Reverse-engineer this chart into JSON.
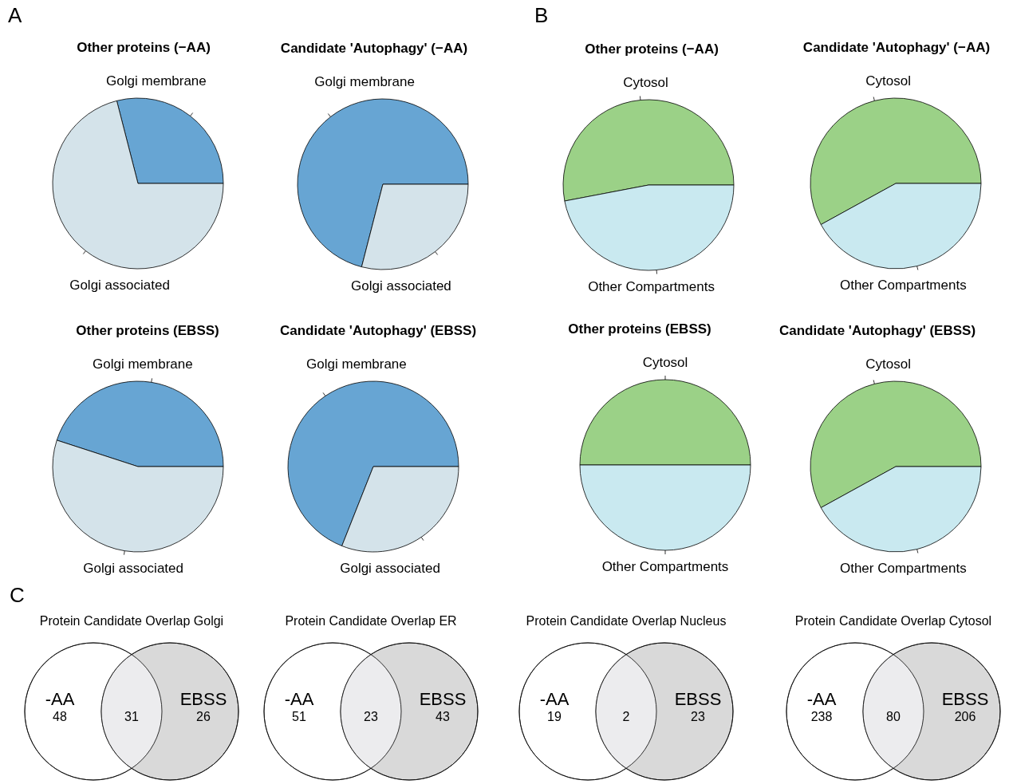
{
  "chart_data": [
    {
      "type": "pie",
      "title": "Other proteins (−AA)",
      "categories": [
        "Golgi membrane",
        "Golgi associated"
      ],
      "values": [
        29,
        71
      ],
      "colors": [
        "#67a5d3",
        "#d4e3ea"
      ],
      "annotations": [
        "A"
      ]
    },
    {
      "type": "pie",
      "title": "Candidate 'Autophagy' (−AA)",
      "categories": [
        "Golgi membrane",
        "Golgi associated"
      ],
      "values": [
        71,
        29
      ],
      "colors": [
        "#67a5d3",
        "#d4e3ea"
      ]
    },
    {
      "type": "pie",
      "title": "Other proteins (EBSS)",
      "categories": [
        "Golgi membrane",
        "Golgi associated"
      ],
      "values": [
        45,
        55
      ],
      "colors": [
        "#67a5d3",
        "#d4e3ea"
      ]
    },
    {
      "type": "pie",
      "title": "Candidate 'Autophagy' (EBSS)",
      "categories": [
        "Golgi membrane",
        "Golgi associated"
      ],
      "values": [
        69,
        31
      ],
      "colors": [
        "#67a5d3",
        "#d4e3ea"
      ]
    },
    {
      "type": "pie",
      "title": "Other proteins (−AA)",
      "categories": [
        "Cytosol",
        "Other Compartments"
      ],
      "values": [
        53,
        47
      ],
      "colors": [
        "#9bd187",
        "#c9e9f0"
      ],
      "annotations": [
        "B"
      ]
    },
    {
      "type": "pie",
      "title": "Candidate 'Autophagy' (−AA)",
      "categories": [
        "Cytosol",
        "Other Compartments"
      ],
      "values": [
        58,
        42
      ],
      "colors": [
        "#9bd187",
        "#c9e9f0"
      ]
    },
    {
      "type": "pie",
      "title": "Other proteins (EBSS)",
      "categories": [
        "Cytosol",
        "Other Compartments"
      ],
      "values": [
        50,
        50
      ],
      "colors": [
        "#9bd187",
        "#c9e9f0"
      ]
    },
    {
      "type": "pie",
      "title": "Candidate 'Autophagy' (EBSS)",
      "categories": [
        "Cytosol",
        "Other Compartments"
      ],
      "values": [
        58,
        42
      ],
      "colors": [
        "#9bd187",
        "#c9e9f0"
      ]
    },
    {
      "type": "other",
      "title": "Protein Candidate Overlap Golgi",
      "categories": [
        "-AA",
        null,
        "EBSS"
      ],
      "values": [
        48,
        31,
        26
      ],
      "data_labels": true,
      "colors": [
        "#ffffff",
        "#ececee",
        "#d9d9d9"
      ],
      "annotations": [
        "C"
      ]
    },
    {
      "type": "other",
      "title": "Protein Candidate Overlap ER",
      "categories": [
        "-AA",
        null,
        "EBSS"
      ],
      "values": [
        51,
        23,
        43
      ],
      "data_labels": true,
      "colors": [
        "#ffffff",
        "#ececee",
        "#d9d9d9"
      ]
    },
    {
      "type": "other",
      "title": "Protein Candidate Overlap Nucleus",
      "categories": [
        "-AA",
        null,
        "EBSS"
      ],
      "values": [
        19,
        2,
        23
      ],
      "data_labels": true,
      "colors": [
        "#ffffff",
        "#ececee",
        "#d9d9d9"
      ]
    },
    {
      "type": "other",
      "title": "Protein Candidate Overlap Cytosol",
      "categories": [
        "-AA",
        null,
        "EBSS"
      ],
      "values": [
        238,
        80,
        206
      ],
      "data_labels": true,
      "colors": [
        "#ffffff",
        "#ececee",
        "#d9d9d9"
      ]
    }
  ]
}
